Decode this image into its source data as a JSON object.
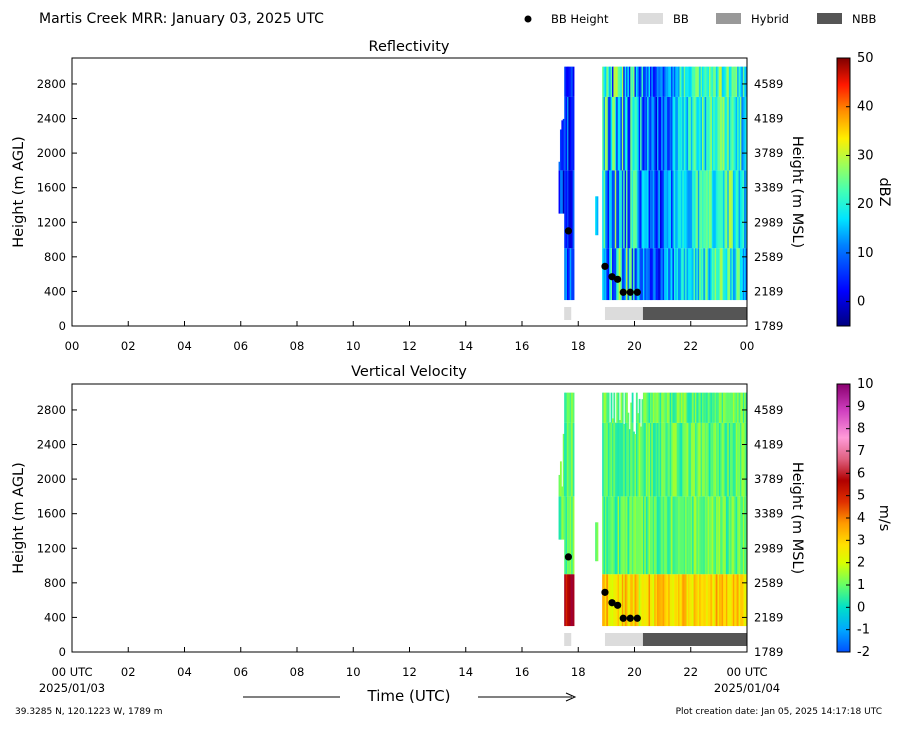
{
  "header": {
    "title": "Martis Creek MRR:  January 03, 2025 UTC",
    "legend": [
      {
        "label": "BB Height",
        "kind": "dot",
        "color": "#000000"
      },
      {
        "label": "BB",
        "kind": "box",
        "color": "#dcdcdc"
      },
      {
        "label": "Hybrid",
        "kind": "box",
        "color": "#999999"
      },
      {
        "label": "NBB",
        "kind": "box",
        "color": "#555555"
      }
    ]
  },
  "chart_data": [
    {
      "type": "heatmap",
      "title": "Reflectivity",
      "ylabel": "Height (m AGL)",
      "ylabel_right": "Height (m MSL)",
      "xlim": [
        0,
        24
      ],
      "ylim": [
        0,
        3100
      ],
      "x_ticks": [
        "00",
        "02",
        "04",
        "06",
        "08",
        "10",
        "12",
        "14",
        "16",
        "18",
        "20",
        "22",
        "00"
      ],
      "y_ticks": [
        0,
        400,
        800,
        1200,
        1600,
        2000,
        2400,
        2800
      ],
      "y_right_ticks": [
        1789,
        2189,
        2589,
        2989,
        3389,
        3789,
        4189,
        4589
      ],
      "colorbar": {
        "label": "dBZ",
        "min": -5,
        "max": 50,
        "ticks": [
          0,
          10,
          20,
          30,
          40,
          50
        ]
      },
      "bb_height_points": [
        {
          "time_utc_hours": 17.65,
          "height_m_agl": 1100
        },
        {
          "time_utc_hours": 18.95,
          "height_m_agl": 690
        },
        {
          "time_utc_hours": 19.2,
          "height_m_agl": 570
        },
        {
          "time_utc_hours": 19.4,
          "height_m_agl": 540
        },
        {
          "time_utc_hours": 19.6,
          "height_m_agl": 390
        },
        {
          "time_utc_hours": 19.85,
          "height_m_agl": 390
        },
        {
          "time_utc_hours": 20.1,
          "height_m_agl": 390
        }
      ],
      "bb_type_segments": [
        {
          "start_utc_hours": 17.5,
          "end_utc_hours": 17.75,
          "type": "BB"
        },
        {
          "start_utc_hours": 18.95,
          "end_utc_hours": 20.3,
          "type": "BB"
        },
        {
          "start_utc_hours": 20.3,
          "end_utc_hours": 24,
          "type": "NBB"
        }
      ]
    },
    {
      "type": "heatmap",
      "title": "Vertical Velocity",
      "xlabel": "Time (UTC)",
      "ylabel": "Height (m AGL)",
      "ylabel_right": "Height (m MSL)",
      "xlim": [
        0,
        24
      ],
      "ylim": [
        0,
        3100
      ],
      "x_ticks": [
        "00 UTC",
        "02",
        "04",
        "06",
        "08",
        "10",
        "12",
        "14",
        "16",
        "18",
        "20",
        "22",
        "00 UTC"
      ],
      "x_date_start": "2025/01/03",
      "x_date_end": "2025/01/04",
      "y_ticks": [
        0,
        400,
        800,
        1200,
        1600,
        2000,
        2400,
        2800
      ],
      "y_right_ticks": [
        1789,
        2189,
        2589,
        2989,
        3389,
        3789,
        4189,
        4589
      ],
      "colorbar": {
        "label": "m/s",
        "min": -2,
        "max": 10,
        "ticks": [
          -2,
          -1,
          0,
          1,
          2,
          3,
          4,
          5,
          6,
          7,
          8,
          9,
          10
        ]
      },
      "bb_height_points": [
        {
          "time_utc_hours": 17.65,
          "height_m_agl": 1100
        },
        {
          "time_utc_hours": 18.95,
          "height_m_agl": 690
        },
        {
          "time_utc_hours": 19.2,
          "height_m_agl": 570
        },
        {
          "time_utc_hours": 19.4,
          "height_m_agl": 540
        },
        {
          "time_utc_hours": 19.6,
          "height_m_agl": 390
        },
        {
          "time_utc_hours": 19.85,
          "height_m_agl": 390
        },
        {
          "time_utc_hours": 20.1,
          "height_m_agl": 390
        }
      ],
      "bb_type_segments": [
        {
          "start_utc_hours": 17.5,
          "end_utc_hours": 17.75,
          "type": "BB"
        },
        {
          "start_utc_hours": 18.95,
          "end_utc_hours": 20.3,
          "type": "BB"
        },
        {
          "start_utc_hours": 20.3,
          "end_utc_hours": 24,
          "type": "NBB"
        }
      ]
    }
  ],
  "footer": {
    "location": "39.3285 N, 120.1223 W, 1789 m",
    "created": "Plot creation date: Jan 05, 2025 14:17:18 UTC"
  }
}
